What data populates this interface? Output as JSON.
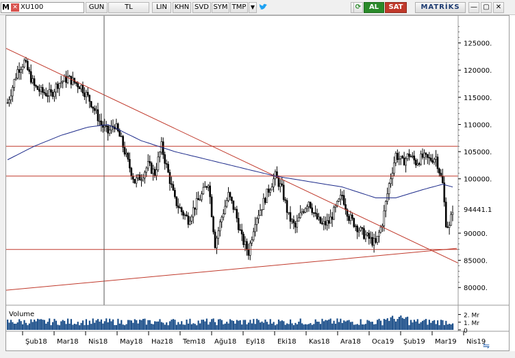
{
  "toolbar": {
    "logo_letter": "M",
    "symbol": "XU100",
    "period": "GUN",
    "currency": "TL",
    "scale": "LIN",
    "khn": "KHN",
    "svd": "SVD",
    "sym": "SYM",
    "tmp": "TMP",
    "dropdown": "▼",
    "lightning": "ϟ",
    "refresh": "⟳",
    "buy": "AL",
    "sell": "SAT",
    "brand": "MATRİKS",
    "icon_twitter": "twitter-bird-icon",
    "icon_minimize": "—",
    "icon_restore": "▢",
    "icon_close": "✕"
  },
  "chart_data": {
    "type": "candlestick",
    "symbol": "XU100",
    "price_axis": {
      "ticks": [
        125000,
        120000,
        115000,
        110000,
        105000,
        100000,
        90000,
        85000,
        80000
      ],
      "tick_labels": [
        "125000.",
        "120000.",
        "115000.",
        "110000.",
        "105000.",
        "100000.",
        "90000.",
        "85000.",
        "80000."
      ],
      "min": 77000,
      "max": 130000
    },
    "last_price": 94441.1,
    "last_price_label": "94441.1",
    "x_axis": {
      "labels": [
        "Şub18",
        "Mar18",
        "Nis18",
        "May18",
        "Haz18",
        "Tem18",
        "Ağu18",
        "Eyl18",
        "Eki18",
        "Kas18",
        "Ara18",
        "Oca19",
        "Şub19",
        "Mar19",
        "Nis19"
      ]
    },
    "price_path": [
      [
        0,
        114000
      ],
      [
        3,
        120000
      ],
      [
        5,
        121500
      ],
      [
        8,
        117000
      ],
      [
        10,
        116000
      ],
      [
        13,
        115500
      ],
      [
        15,
        117500
      ],
      [
        18,
        118500
      ],
      [
        22,
        117000
      ],
      [
        25,
        114000
      ],
      [
        28,
        110000
      ],
      [
        30,
        108500
      ],
      [
        32,
        110000
      ],
      [
        34,
        107000
      ],
      [
        36,
        103000
      ],
      [
        38,
        99500
      ],
      [
        40,
        100500
      ],
      [
        42,
        102500
      ],
      [
        44,
        101000
      ],
      [
        46,
        106000
      ],
      [
        48,
        101000
      ],
      [
        50,
        96000
      ],
      [
        52,
        94000
      ],
      [
        54,
        92500
      ],
      [
        56,
        95000
      ],
      [
        58,
        97000
      ],
      [
        60,
        99500
      ],
      [
        62,
        88000
      ],
      [
        64,
        93000
      ],
      [
        66,
        97000
      ],
      [
        68,
        94000
      ],
      [
        70,
        89000
      ],
      [
        72,
        86500
      ],
      [
        74,
        92500
      ],
      [
        76,
        95000
      ],
      [
        78,
        98000
      ],
      [
        80,
        100500
      ],
      [
        82,
        98000
      ],
      [
        84,
        93000
      ],
      [
        86,
        91000
      ],
      [
        88,
        94000
      ],
      [
        90,
        96000
      ],
      [
        92,
        93000
      ],
      [
        94,
        91500
      ],
      [
        96,
        92000
      ],
      [
        98,
        94500
      ],
      [
        100,
        97000
      ],
      [
        102,
        93000
      ],
      [
        104,
        91500
      ],
      [
        106,
        90000
      ],
      [
        108,
        89000
      ],
      [
        110,
        88000
      ],
      [
        112,
        92000
      ],
      [
        114,
        99000
      ],
      [
        116,
        104500
      ],
      [
        118,
        103000
      ],
      [
        120,
        104500
      ],
      [
        122,
        103000
      ],
      [
        124,
        104000
      ],
      [
        126,
        103500
      ],
      [
        128,
        104000
      ],
      [
        129,
        101500
      ],
      [
        130,
        99000
      ],
      [
        131,
        92000
      ],
      [
        132,
        91000
      ],
      [
        133,
        94500
      ]
    ],
    "moving_average": [
      [
        0,
        103500
      ],
      [
        8,
        106000
      ],
      [
        16,
        108000
      ],
      [
        24,
        109500
      ],
      [
        30,
        110000
      ],
      [
        40,
        107000
      ],
      [
        50,
        105000
      ],
      [
        60,
        103500
      ],
      [
        70,
        102000
      ],
      [
        80,
        100500
      ],
      [
        90,
        99500
      ],
      [
        100,
        98500
      ],
      [
        110,
        96500
      ],
      [
        116,
        96500
      ],
      [
        124,
        98000
      ],
      [
        130,
        99000
      ],
      [
        133,
        98500
      ]
    ],
    "horizontal_lines": [
      106000,
      100500,
      87000
    ],
    "volume": {
      "label": "Volume",
      "axis_labels": [
        "2. Mr",
        "1. Mr",
        "0"
      ],
      "max": 2.5
    }
  }
}
